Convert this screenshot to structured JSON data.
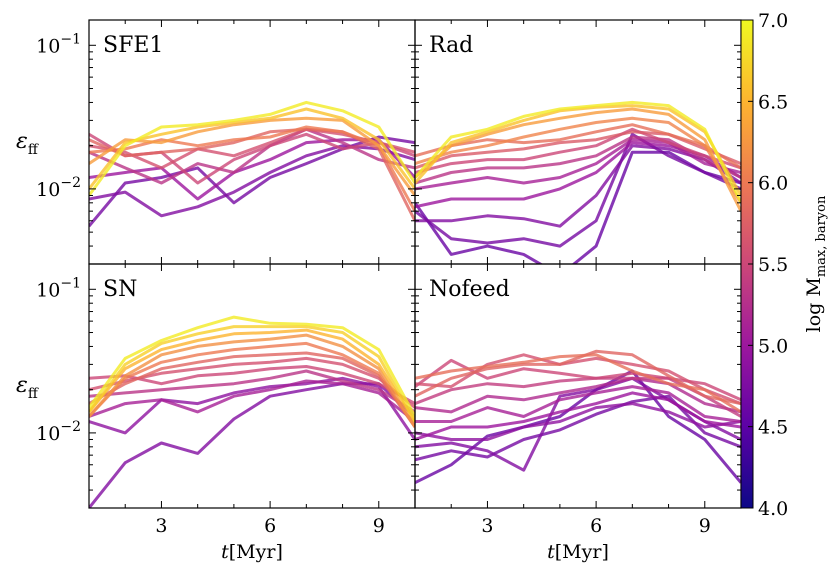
{
  "chart_data": {
    "type": "line",
    "layout": "2x2 panels sharing axes",
    "xlabel": "t[Myr]",
    "ylabel": "ε_ff",
    "ylabel_main": "ε",
    "ylabel_sub": "ff",
    "xlabel_var": "t",
    "xlabel_unit": "[Myr]",
    "xlim": [
      1,
      10
    ],
    "ylim": [
      0.003,
      0.15
    ],
    "yscale": "log",
    "xticks": [
      3,
      6,
      9
    ],
    "xtick_labels": [
      "3",
      "6",
      "9"
    ],
    "yticks": [
      0.01,
      0.1
    ],
    "ytick_labels_base": [
      "10",
      "10"
    ],
    "ytick_labels_exp": [
      "−2",
      "−1"
    ],
    "colorbar": {
      "label_main": "log M",
      "label_sub": "max, baryon",
      "label": "log M_max, baryon",
      "range": [
        4.0,
        7.0
      ],
      "ticks": [
        "4.0",
        "4.5",
        "5.0",
        "5.5",
        "6.0",
        "6.5",
        "7.0"
      ],
      "colormap": "plasma",
      "colors": [
        "#0d0887",
        "#5c01a6",
        "#9c179e",
        "#cc4778",
        "#ed7953",
        "#fdb42f",
        "#f0f921"
      ]
    },
    "x": [
      1,
      2,
      3,
      4,
      5,
      6,
      7,
      8,
      9,
      10
    ],
    "panels": [
      {
        "title": "SFE1",
        "series": [
          {
            "logM": 6.9,
            "values": [
              0.009,
              0.02,
              0.027,
              0.028,
              0.03,
              0.033,
              0.04,
              0.035,
              0.027,
              0.011
            ]
          },
          {
            "logM": 6.6,
            "values": [
              0.01,
              0.021,
              0.024,
              0.027,
              0.029,
              0.031,
              0.036,
              0.031,
              0.022,
              0.01
            ]
          },
          {
            "logM": 6.3,
            "values": [
              0.015,
              0.022,
              0.021,
              0.025,
              0.028,
              0.03,
              0.031,
              0.03,
              0.02,
              0.009
            ]
          },
          {
            "logM": 6.0,
            "values": [
              0.018,
              0.019,
              0.022,
              0.02,
              0.022,
              0.023,
              0.027,
              0.025,
              0.02,
              0.007
            ]
          },
          {
            "logM": 5.8,
            "values": [
              0.022,
              0.017,
              0.018,
              0.019,
              0.021,
              0.025,
              0.026,
              0.025,
              0.019,
              0.006
            ]
          },
          {
            "logM": 5.6,
            "values": [
              0.02,
              0.018,
              0.014,
              0.019,
              0.017,
              0.021,
              0.026,
              0.024,
              0.021,
              0.018
            ]
          },
          {
            "logM": 5.5,
            "values": [
              0.024,
              0.017,
              0.018,
              0.011,
              0.016,
              0.02,
              0.024,
              0.019,
              0.021,
              0.017
            ]
          },
          {
            "logM": 5.3,
            "values": [
              0.018,
              0.014,
              0.011,
              0.015,
              0.013,
              0.02,
              0.026,
              0.021,
              0.016,
              0.014
            ]
          },
          {
            "logM": 5.0,
            "values": [
              0.012,
              0.013,
              0.014,
              0.0085,
              0.013,
              0.016,
              0.021,
              0.022,
              0.022,
              0.012
            ]
          },
          {
            "logM": 4.8,
            "values": [
              0.0085,
              0.0095,
              0.0065,
              0.0075,
              0.0095,
              0.013,
              0.017,
              0.02,
              0.019,
              0.016
            ]
          },
          {
            "logM": 4.7,
            "values": [
              0.0055,
              0.011,
              0.012,
              0.014,
              0.008,
              0.012,
              0.015,
              0.019,
              0.023,
              0.021
            ]
          }
        ]
      },
      {
        "title": "Rad",
        "series": [
          {
            "logM": 6.9,
            "values": [
              0.012,
              0.023,
              0.026,
              0.032,
              0.036,
              0.038,
              0.04,
              0.038,
              0.026,
              0.008
            ]
          },
          {
            "logM": 6.6,
            "values": [
              0.011,
              0.021,
              0.025,
              0.03,
              0.035,
              0.037,
              0.038,
              0.036,
              0.025,
              0.009
            ]
          },
          {
            "logM": 6.3,
            "values": [
              0.012,
              0.02,
              0.024,
              0.028,
              0.031,
              0.034,
              0.036,
              0.033,
              0.022,
              0.007
            ]
          },
          {
            "logM": 6.1,
            "values": [
              0.015,
              0.018,
              0.02,
              0.023,
              0.026,
              0.029,
              0.031,
              0.029,
              0.02,
              0.008
            ]
          },
          {
            "logM": 5.9,
            "values": [
              0.017,
              0.02,
              0.022,
              0.021,
              0.022,
              0.025,
              0.028,
              0.024,
              0.02,
              0.014
            ]
          },
          {
            "logM": 5.7,
            "values": [
              0.014,
              0.017,
              0.018,
              0.019,
              0.021,
              0.022,
              0.025,
              0.024,
              0.019,
              0.015
            ]
          },
          {
            "logM": 5.5,
            "values": [
              0.013,
              0.015,
              0.016,
              0.016,
              0.018,
              0.02,
              0.026,
              0.021,
              0.017,
              0.014
            ]
          },
          {
            "logM": 5.3,
            "values": [
              0.011,
              0.013,
              0.014,
              0.014,
              0.015,
              0.017,
              0.023,
              0.022,
              0.016,
              0.012
            ]
          },
          {
            "logM": 5.1,
            "values": [
              0.01,
              0.011,
              0.012,
              0.011,
              0.012,
              0.015,
              0.022,
              0.021,
              0.015,
              0.013
            ]
          },
          {
            "logM": 5.0,
            "values": [
              0.0075,
              0.0085,
              0.0085,
              0.0085,
              0.01,
              0.013,
              0.021,
              0.02,
              0.017,
              0.012
            ]
          },
          {
            "logM": 4.8,
            "values": [
              0.006,
              0.006,
              0.0065,
              0.0062,
              0.0055,
              0.009,
              0.02,
              0.019,
              0.016,
              0.011
            ]
          },
          {
            "logM": 4.7,
            "values": [
              0.007,
              0.0045,
              0.0042,
              0.0045,
              0.004,
              0.006,
              0.024,
              0.017,
              0.013,
              0.01
            ]
          },
          {
            "logM": 4.6,
            "values": [
              0.008,
              0.0035,
              0.004,
              0.0035,
              0.0025,
              0.004,
              0.018,
              0.018,
              0.013,
              0.011
            ]
          }
        ]
      },
      {
        "title": "SN",
        "series": [
          {
            "logM": 6.9,
            "values": [
              0.015,
              0.033,
              0.044,
              0.054,
              0.064,
              0.058,
              0.057,
              0.054,
              0.038,
              0.013
            ]
          },
          {
            "logM": 6.7,
            "values": [
              0.014,
              0.03,
              0.042,
              0.049,
              0.055,
              0.055,
              0.055,
              0.05,
              0.034,
              0.012
            ]
          },
          {
            "logM": 6.5,
            "values": [
              0.014,
              0.028,
              0.038,
              0.044,
              0.049,
              0.05,
              0.052,
              0.045,
              0.03,
              0.012
            ]
          },
          {
            "logM": 6.2,
            "values": [
              0.013,
              0.025,
              0.035,
              0.04,
              0.043,
              0.045,
              0.048,
              0.04,
              0.028,
              0.011
            ]
          },
          {
            "logM": 6.0,
            "values": [
              0.013,
              0.024,
              0.031,
              0.035,
              0.038,
              0.04,
              0.042,
              0.035,
              0.026,
              0.011
            ]
          },
          {
            "logM": 5.8,
            "values": [
              0.016,
              0.022,
              0.028,
              0.031,
              0.034,
              0.035,
              0.036,
              0.033,
              0.025,
              0.011
            ]
          },
          {
            "logM": 5.6,
            "values": [
              0.02,
              0.023,
              0.026,
              0.028,
              0.03,
              0.031,
              0.033,
              0.03,
              0.024,
              0.015
            ]
          },
          {
            "logM": 5.5,
            "values": [
              0.024,
              0.025,
              0.022,
              0.025,
              0.026,
              0.028,
              0.029,
              0.026,
              0.022,
              0.016
            ]
          },
          {
            "logM": 5.3,
            "values": [
              0.018,
              0.019,
              0.02,
              0.021,
              0.022,
              0.024,
              0.027,
              0.023,
              0.02,
              0.014
            ]
          },
          {
            "logM": 5.1,
            "values": [
              0.013,
              0.016,
              0.017,
              0.014,
              0.018,
              0.02,
              0.023,
              0.022,
              0.019,
              0.012
            ]
          },
          {
            "logM": 4.9,
            "values": [
              0.012,
              0.01,
              0.017,
              0.016,
              0.019,
              0.021,
              0.022,
              0.024,
              0.021,
              0.009
            ]
          },
          {
            "logM": 4.8,
            "values": [
              0.003,
              0.0062,
              0.0085,
              0.0072,
              0.0125,
              0.018,
              0.02,
              0.022,
              0.022,
              0.013
            ]
          }
        ]
      },
      {
        "title": "Nofeed",
        "series": [
          {
            "logM": 5.9,
            "values": [
              0.024,
              0.027,
              0.029,
              0.031,
              0.034,
              0.035,
              0.027,
              0.022,
              0.02,
              0.014
            ]
          },
          {
            "logM": 5.8,
            "values": [
              0.018,
              0.024,
              0.028,
              0.03,
              0.03,
              0.037,
              0.035,
              0.025,
              0.018,
              0.016
            ]
          },
          {
            "logM": 5.6,
            "values": [
              0.022,
              0.021,
              0.03,
              0.035,
              0.03,
              0.033,
              0.03,
              0.027,
              0.02,
              0.016
            ]
          },
          {
            "logM": 5.5,
            "values": [
              0.021,
              0.032,
              0.024,
              0.028,
              0.026,
              0.024,
              0.026,
              0.024,
              0.022,
              0.017
            ]
          },
          {
            "logM": 5.4,
            "values": [
              0.016,
              0.02,
              0.022,
              0.021,
              0.023,
              0.024,
              0.024,
              0.024,
              0.018,
              0.013
            ]
          },
          {
            "logM": 5.2,
            "values": [
              0.015,
              0.014,
              0.018,
              0.017,
              0.019,
              0.021,
              0.024,
              0.022,
              0.016,
              0.014
            ]
          },
          {
            "logM": 5.1,
            "values": [
              0.012,
              0.012,
              0.015,
              0.013,
              0.017,
              0.019,
              0.021,
              0.019,
              0.013,
              0.012
            ]
          },
          {
            "logM": 5.0,
            "values": [
              0.009,
              0.011,
              0.011,
              0.012,
              0.014,
              0.016,
              0.019,
              0.017,
              0.012,
              0.011
            ]
          },
          {
            "logM": 4.9,
            "values": [
              0.01,
              0.009,
              0.009,
              0.011,
              0.012,
              0.015,
              0.016,
              0.014,
              0.011,
              0.012
            ]
          },
          {
            "logM": 4.8,
            "values": [
              0.008,
              0.0085,
              0.0075,
              0.0055,
              0.018,
              0.02,
              0.024,
              0.017,
              0.012,
              0.009
            ]
          },
          {
            "logM": 4.7,
            "values": [
              0.0065,
              0.0075,
              0.0068,
              0.009,
              0.0105,
              0.0135,
              0.0165,
              0.018,
              0.01,
              0.008
            ]
          },
          {
            "logM": 4.6,
            "values": [
              0.0045,
              0.006,
              0.0095,
              0.011,
              0.013,
              0.02,
              0.027,
              0.013,
              0.009,
              0.0045
            ]
          }
        ]
      }
    ]
  }
}
